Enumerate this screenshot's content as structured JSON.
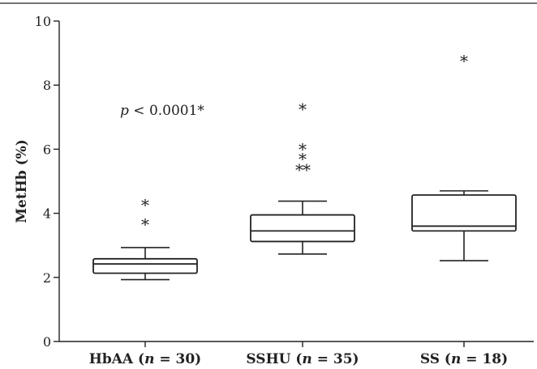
{
  "chart_data": {
    "type": "boxplot",
    "ylabel": "MetHb (%)",
    "ylim": [
      0,
      10
    ],
    "yticks": [
      "0",
      "2",
      "4",
      "6",
      "8",
      "10"
    ],
    "annotation": {
      "p_symbol": "p",
      "text": " < 0.0001*"
    },
    "groups": [
      {
        "label": "HbAA",
        "n_label": "n",
        "n_suffix": " = 30)",
        "label_open": " (",
        "whisker_low": 1.93,
        "q1": 2.13,
        "median": 2.42,
        "q3": 2.58,
        "whisker_high": 2.93,
        "outliers": [
          3.7,
          4.3
        ]
      },
      {
        "label": "SSHU",
        "n_label": "n",
        "n_suffix": " = 35)",
        "label_open": " (",
        "whisker_low": 2.73,
        "q1": 3.12,
        "median": 3.45,
        "q3": 3.95,
        "whisker_high": 4.38,
        "outliers": [
          5.4,
          5.4,
          5.75,
          6.05,
          7.3
        ]
      },
      {
        "label": "SS",
        "n_label": "n",
        "n_suffix": " = 18)",
        "label_open": " (",
        "whisker_low": 2.52,
        "q1": 3.45,
        "median": 3.6,
        "q3": 4.57,
        "whisker_high": 4.7,
        "outliers": [
          8.8
        ]
      }
    ],
    "outlier_marker": "*"
  }
}
